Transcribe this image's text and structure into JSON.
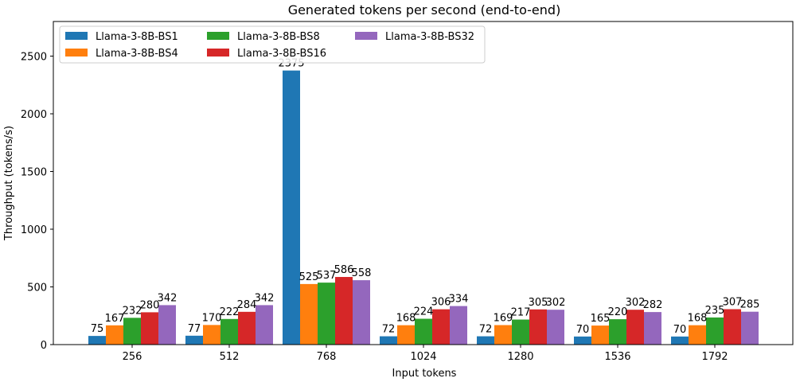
{
  "chart_data": {
    "type": "bar",
    "title": "Generated tokens per second (end-to-end)",
    "xlabel": "Input tokens",
    "ylabel": "Throughput (tokens/s)",
    "categories": [
      "256",
      "512",
      "768",
      "1024",
      "1280",
      "1536",
      "1792"
    ],
    "ylim": [
      0,
      2800
    ],
    "yticks": [
      0,
      500,
      1000,
      1500,
      2000,
      2500
    ],
    "grid": false,
    "legend_position": "top-left",
    "legend_columns": 3,
    "series": [
      {
        "name": "Llama-3-8B-BS1",
        "color": "#1f77b4",
        "values": [
          75,
          77,
          2375,
          72,
          72,
          70,
          70
        ]
      },
      {
        "name": "Llama-3-8B-BS4",
        "color": "#ff7f0e",
        "values": [
          167,
          170,
          525,
          168,
          169,
          165,
          168
        ]
      },
      {
        "name": "Llama-3-8B-BS8",
        "color": "#2ca02c",
        "values": [
          232,
          222,
          537,
          224,
          217,
          220,
          235
        ]
      },
      {
        "name": "Llama-3-8B-BS16",
        "color": "#d62728",
        "values": [
          280,
          284,
          586,
          306,
          305,
          302,
          307
        ]
      },
      {
        "name": "Llama-3-8B-BS32",
        "color": "#9467bd",
        "values": [
          342,
          342,
          558,
          334,
          302,
          282,
          285
        ]
      }
    ]
  }
}
